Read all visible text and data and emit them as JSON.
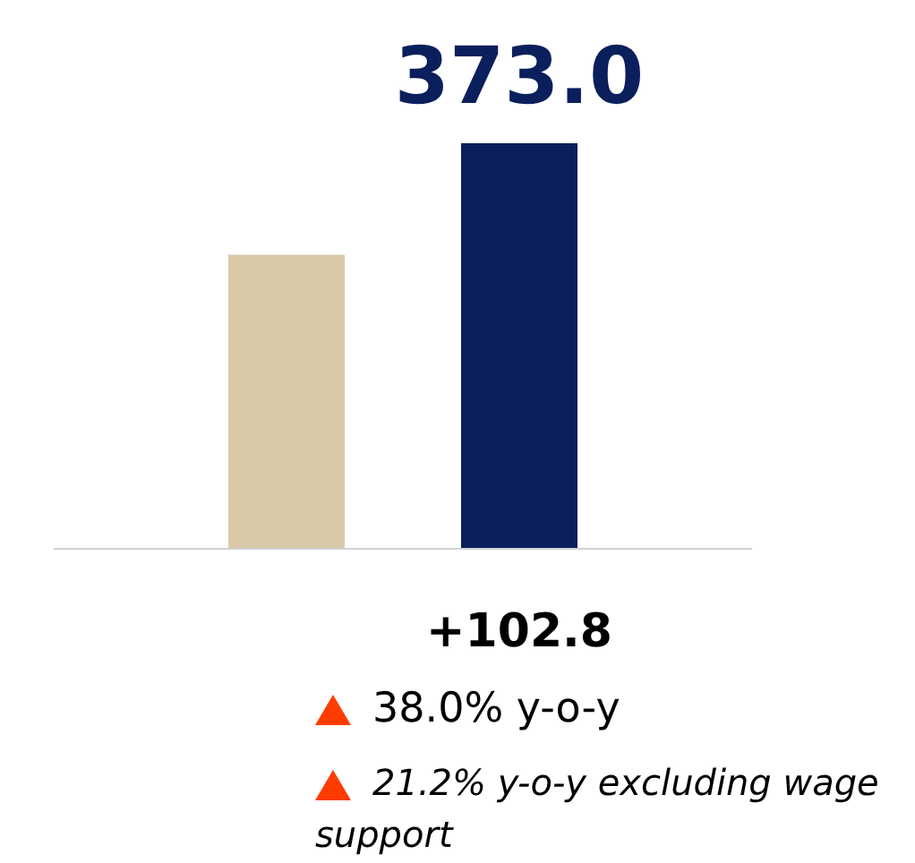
{
  "chart_data": {
    "type": "bar",
    "categories": [
      null,
      null
    ],
    "values": [
      270.2,
      373.0
    ],
    "colors": [
      "#d9c9a9",
      "#0a1f5c"
    ],
    "value_labels": [
      null,
      "373.0"
    ],
    "annotations": [
      "+102.8",
      "38.0% y-o-y",
      "21.2% y-o-y excluding wage support"
    ]
  }
}
